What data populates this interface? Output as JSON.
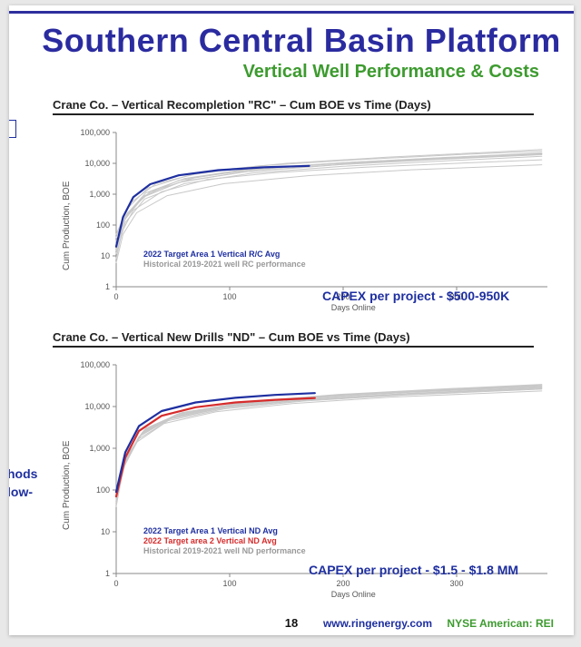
{
  "header": {
    "main_title": "Southern Central Basin Platform",
    "sub_title": "Vertical Well Performance & Costs",
    "top_rule_color": "#2e2e9e",
    "main_title_color": "#2b2ba0",
    "sub_title_color": "#3d9b2f"
  },
  "left_fragments": {
    "frag1": "hods",
    "frag2": "low-"
  },
  "chart1": {
    "type": "line",
    "title": "Crane Co. – Vertical Recompletion \"RC\"  – Cum BOE  vs Time (Days)",
    "ylabel": "Cum Production, BOE",
    "xlabel": "Days Online",
    "xlim": [
      0,
      380
    ],
    "ylim": [
      1,
      100000
    ],
    "yscale": "log",
    "yticks": [
      1,
      10,
      100,
      1000,
      10000,
      100000
    ],
    "ytick_labels": [
      "1",
      "10",
      "100",
      "1,000",
      "10,000",
      "100,000"
    ],
    "xticks": [
      0,
      100,
      200,
      300
    ],
    "background_color": "#ffffff",
    "axis_color": "#888888",
    "text_color": "#555555",
    "label_fontsize": 9,
    "series": [
      {
        "name": "Historical 2019-2021 well RC performance",
        "color": "#c8c8c8",
        "width": 1,
        "lines": [
          [
            [
              0,
              8
            ],
            [
              5,
              60
            ],
            [
              15,
              300
            ],
            [
              40,
              1200
            ],
            [
              80,
              3000
            ],
            [
              140,
              5000
            ],
            [
              220,
              7500
            ],
            [
              300,
              10000
            ],
            [
              375,
              13000
            ]
          ],
          [
            [
              0,
              30
            ],
            [
              10,
              250
            ],
            [
              30,
              1200
            ],
            [
              70,
              3500
            ],
            [
              130,
              7000
            ],
            [
              210,
              11000
            ],
            [
              300,
              16000
            ],
            [
              375,
              22000
            ]
          ],
          [
            [
              0,
              12
            ],
            [
              8,
              120
            ],
            [
              25,
              700
            ],
            [
              60,
              2200
            ],
            [
              120,
              4800
            ],
            [
              200,
              8000
            ],
            [
              290,
              12000
            ],
            [
              375,
              17000
            ]
          ],
          [
            [
              0,
              50
            ],
            [
              12,
              500
            ],
            [
              35,
              2200
            ],
            [
              80,
              5500
            ],
            [
              150,
              10000
            ],
            [
              240,
              16000
            ],
            [
              330,
              23000
            ],
            [
              375,
              28000
            ]
          ],
          [
            [
              0,
              20
            ],
            [
              8,
              180
            ],
            [
              25,
              900
            ],
            [
              55,
              2800
            ],
            [
              110,
              5800
            ],
            [
              190,
              9500
            ],
            [
              280,
              14000
            ],
            [
              375,
              20000
            ]
          ],
          [
            [
              0,
              40
            ],
            [
              10,
              350
            ],
            [
              28,
              1600
            ],
            [
              65,
              4200
            ],
            [
              125,
              8200
            ],
            [
              210,
              13000
            ],
            [
              300,
              19000
            ],
            [
              375,
              25000
            ]
          ],
          [
            [
              0,
              6
            ],
            [
              6,
              50
            ],
            [
              18,
              250
            ],
            [
              45,
              900
            ],
            [
              95,
              2200
            ],
            [
              170,
              4000
            ],
            [
              260,
              6200
            ],
            [
              375,
              9000
            ]
          ],
          [
            [
              0,
              25
            ],
            [
              9,
              220
            ],
            [
              26,
              1100
            ],
            [
              60,
              3200
            ],
            [
              115,
              6500
            ],
            [
              200,
              10500
            ],
            [
              290,
              15500
            ],
            [
              375,
              21000
            ]
          ],
          [
            [
              0,
              15
            ],
            [
              7,
              140
            ],
            [
              22,
              750
            ],
            [
              55,
              2400
            ],
            [
              110,
              5200
            ],
            [
              195,
              9000
            ],
            [
              285,
              13500
            ],
            [
              375,
              19000
            ]
          ],
          [
            [
              0,
              18
            ],
            [
              8,
              160
            ],
            [
              24,
              820
            ],
            [
              58,
              2600
            ],
            [
              118,
              5600
            ],
            [
              205,
              9600
            ],
            [
              295,
              14500
            ],
            [
              375,
              20500
            ]
          ]
        ]
      },
      {
        "name": "2022 Target Area 1 Vertical R/C Avg",
        "color": "#1e2fa0",
        "width": 2.2,
        "lines": [
          [
            [
              0,
              20
            ],
            [
              6,
              180
            ],
            [
              15,
              800
            ],
            [
              30,
              2100
            ],
            [
              55,
              4100
            ],
            [
              90,
              6000
            ],
            [
              130,
              7400
            ],
            [
              170,
              8300
            ]
          ]
        ]
      }
    ],
    "legend": [
      {
        "text": "2022 Target Area 1 Vertical R/C Avg",
        "color": "#1e2fa0"
      },
      {
        "text": "Historical 2019-2021 well RC performance",
        "color": "#999999"
      }
    ],
    "capex": "CAPEX per project - $500-950K",
    "capex_color": "#1e2fa0"
  },
  "chart2": {
    "type": "line",
    "title": "Crane Co. – Vertical New Drills \"ND\" – Cum BOE  vs Time (Days)",
    "ylabel": "Cum Production, BOE",
    "xlabel": "Days Online",
    "xlim": [
      0,
      380
    ],
    "ylim": [
      1,
      100000
    ],
    "yscale": "log",
    "yticks": [
      1,
      10,
      100,
      1000,
      10000,
      100000
    ],
    "ytick_labels": [
      "1",
      "10",
      "100",
      "1,000",
      "10,000",
      "100,000"
    ],
    "xticks": [
      0,
      100,
      200,
      300
    ],
    "background_color": "#ffffff",
    "axis_color": "#888888",
    "text_color": "#555555",
    "label_fontsize": 9,
    "series": [
      {
        "name": "Historical 2019-2021 well ND performance",
        "color": "#c8c8c8",
        "width": 1,
        "lines": [
          [
            [
              0,
              60
            ],
            [
              8,
              500
            ],
            [
              22,
              2200
            ],
            [
              50,
              5800
            ],
            [
              100,
              10500
            ],
            [
              170,
              16000
            ],
            [
              260,
              22000
            ],
            [
              375,
              30000
            ]
          ],
          [
            [
              0,
              90
            ],
            [
              10,
              700
            ],
            [
              26,
              3000
            ],
            [
              58,
              7200
            ],
            [
              115,
              13000
            ],
            [
              195,
              19500
            ],
            [
              290,
              26500
            ],
            [
              375,
              34000
            ]
          ],
          [
            [
              0,
              45
            ],
            [
              7,
              380
            ],
            [
              20,
              1700
            ],
            [
              46,
              4600
            ],
            [
              95,
              8800
            ],
            [
              165,
              13500
            ],
            [
              255,
              19000
            ],
            [
              375,
              26000
            ]
          ],
          [
            [
              0,
              70
            ],
            [
              9,
              580
            ],
            [
              24,
              2600
            ],
            [
              54,
              6600
            ],
            [
              108,
              11800
            ],
            [
              185,
              17800
            ],
            [
              278,
              24200
            ],
            [
              375,
              31500
            ]
          ],
          [
            [
              0,
              55
            ],
            [
              8,
              450
            ],
            [
              21,
              2000
            ],
            [
              48,
              5300
            ],
            [
              98,
              9800
            ],
            [
              168,
              14800
            ],
            [
              258,
              20400
            ],
            [
              375,
              27800
            ]
          ],
          [
            [
              0,
              80
            ],
            [
              10,
              650
            ],
            [
              25,
              2800
            ],
            [
              56,
              6900
            ],
            [
              112,
              12400
            ],
            [
              190,
              18600
            ],
            [
              284,
              25300
            ],
            [
              375,
              32800
            ]
          ],
          [
            [
              0,
              40
            ],
            [
              6,
              320
            ],
            [
              18,
              1400
            ],
            [
              42,
              3900
            ],
            [
              88,
              7500
            ],
            [
              155,
              11800
            ],
            [
              242,
              16800
            ],
            [
              375,
              23500
            ]
          ],
          [
            [
              0,
              65
            ],
            [
              8,
              520
            ],
            [
              23,
              2400
            ],
            [
              52,
              6200
            ],
            [
              104,
              11200
            ],
            [
              178,
              17000
            ],
            [
              270,
              23200
            ],
            [
              375,
              30500
            ]
          ],
          [
            [
              0,
              50
            ],
            [
              7,
              420
            ],
            [
              20,
              1900
            ],
            [
              47,
              5000
            ],
            [
              96,
              9400
            ],
            [
              166,
              14200
            ],
            [
              256,
              19800
            ],
            [
              375,
              27200
            ]
          ],
          [
            [
              0,
              58
            ],
            [
              8,
              470
            ],
            [
              22,
              2100
            ],
            [
              50,
              5500
            ],
            [
              100,
              10100
            ],
            [
              172,
              15300
            ],
            [
              262,
              21000
            ],
            [
              375,
              28600
            ]
          ]
        ]
      },
      {
        "name": "2022 Target area 2 Vertical ND Avg",
        "color": "#d62c2c",
        "width": 2.2,
        "lines": [
          [
            [
              0,
              70
            ],
            [
              8,
              600
            ],
            [
              20,
              2600
            ],
            [
              40,
              6000
            ],
            [
              70,
              9600
            ],
            [
              105,
              12500
            ],
            [
              140,
              14500
            ],
            [
              175,
              16000
            ]
          ]
        ]
      },
      {
        "name": "2022 Target Area 1 Vertical ND Avg",
        "color": "#1e2fa0",
        "width": 2.2,
        "lines": [
          [
            [
              0,
              90
            ],
            [
              8,
              800
            ],
            [
              20,
              3400
            ],
            [
              40,
              7800
            ],
            [
              70,
              12500
            ],
            [
              105,
              16200
            ],
            [
              140,
              19000
            ],
            [
              175,
              21000
            ]
          ]
        ]
      }
    ],
    "legend": [
      {
        "text": "2022 Target Area 1 Vertical ND Avg",
        "color": "#1e2fa0"
      },
      {
        "text": "2022 Target area 2 Vertical ND Avg",
        "color": "#d62c2c"
      },
      {
        "text": "Historical 2019-2021 well ND performance",
        "color": "#999999"
      }
    ],
    "capex": "CAPEX per project - $1.5 - $1.8 MM",
    "capex_color": "#1e2fa0"
  },
  "footer": {
    "page_number": "18",
    "website": "www.ringenergy.com",
    "ticker": "NYSE American: REI",
    "website_color": "#1e2fa0",
    "ticker_color": "#3d9b2f"
  }
}
